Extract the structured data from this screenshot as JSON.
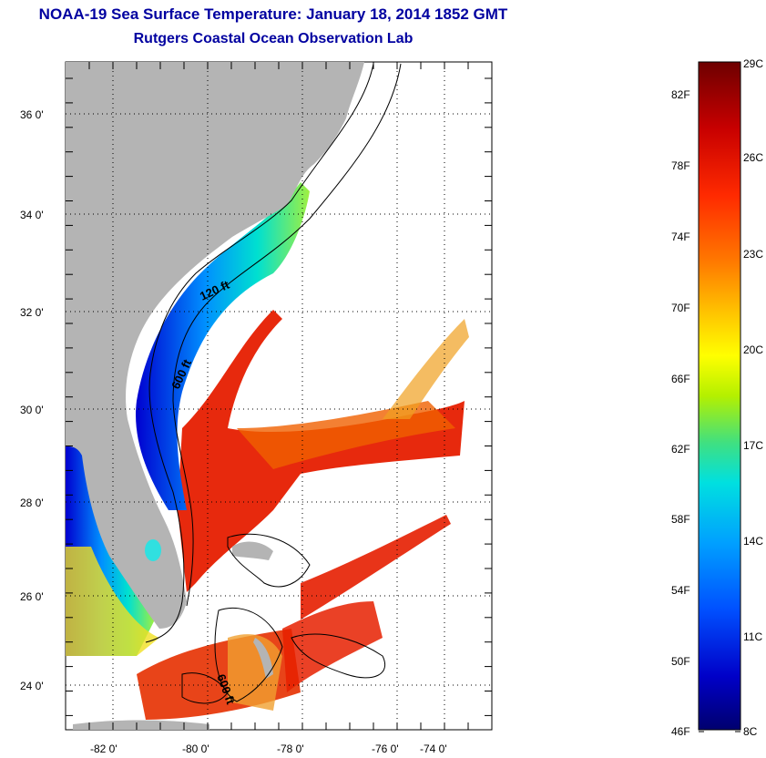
{
  "title": "NOAA-19 Sea Surface Temperature:  January 18, 2014 1852 GMT",
  "subtitle": "Rutgers Coastal Ocean Observation Lab",
  "map": {
    "lat_ticks": [
      "36 0'",
      "34 0'",
      "32 0'",
      "30 0'",
      "28 0'",
      "26 0'",
      "24 0'"
    ],
    "lon_ticks": [
      "-82 0'",
      "-80 0'",
      "-78 0'",
      "-76 0'",
      "-74 0'"
    ],
    "contour_labels": [
      "120 ft",
      "600 ft",
      "600 ft"
    ],
    "land_color": "#b4b4b4",
    "no_data_color": "#ffffff"
  },
  "colorbar": {
    "fahrenheit": [
      "82F",
      "78F",
      "74F",
      "70F",
      "66F",
      "62F",
      "58F",
      "54F",
      "50F",
      "46F"
    ],
    "celsius": [
      "29C",
      "26C",
      "23C",
      "20C",
      "17C",
      "14C",
      "11C",
      "8C"
    ],
    "colors_top_to_bottom": [
      "#6e0000",
      "#c80000",
      "#ff2a00",
      "#ff7a00",
      "#ffc800",
      "#ffff00",
      "#b4f000",
      "#40e080",
      "#00e0e0",
      "#00a0ff",
      "#0050ff",
      "#0000c8",
      "#00006e"
    ]
  }
}
